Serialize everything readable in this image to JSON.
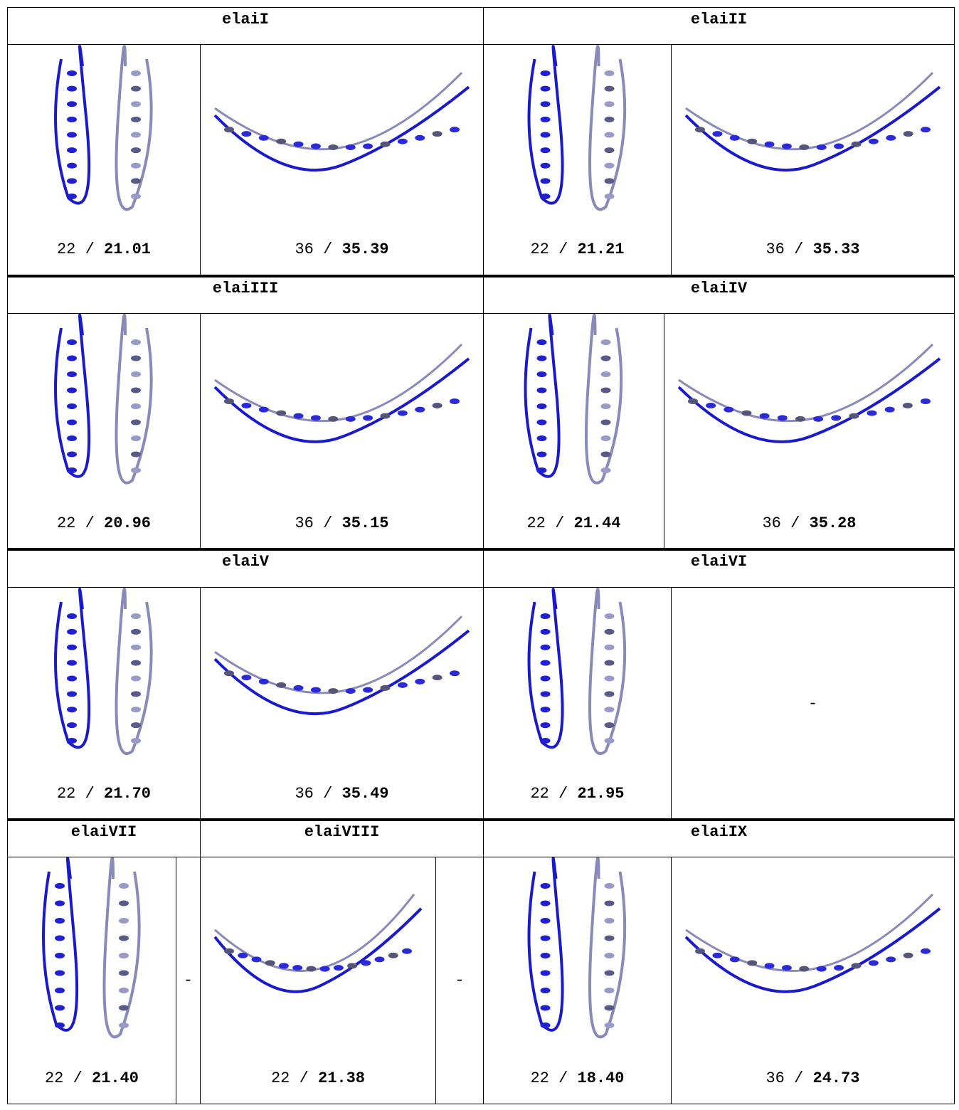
{
  "groups": [
    {
      "headers": [
        {
          "name": "elaiI"
        },
        {
          "name": "elaiII"
        }
      ],
      "cells": [
        {
          "n": "22",
          "sep": "/",
          "v": "21.01"
        },
        {
          "n": "36",
          "sep": "/",
          "v": "35.39"
        },
        {
          "n": "22",
          "sep": "/",
          "v": "21.21"
        },
        {
          "n": "36",
          "sep": "/",
          "v": "35.33"
        }
      ]
    },
    {
      "headers": [
        {
          "name": "elaiIII"
        },
        {
          "name": "elaiIV"
        }
      ],
      "cells": [
        {
          "n": "22",
          "sep": "/",
          "v": "20.96"
        },
        {
          "n": "36",
          "sep": "/",
          "v": "35.15"
        },
        {
          "n": "22",
          "sep": "/",
          "v": "21.44"
        },
        {
          "n": "36",
          "sep": "/",
          "v": "35.28"
        }
      ]
    },
    {
      "headers": [
        {
          "name": "elaiV"
        },
        {
          "name": "elaiVI"
        }
      ],
      "cells": [
        {
          "n": "22",
          "sep": "/",
          "v": "21.70"
        },
        {
          "n": "36",
          "sep": "/",
          "v": "35.49"
        },
        {
          "n": "22",
          "sep": "/",
          "v": "21.95"
        },
        {
          "dash": "-"
        }
      ]
    },
    {
      "headers": [
        {
          "name": "elaiVII"
        },
        {
          "name": "elaiVIII"
        },
        {
          "name": "elaiIX"
        }
      ],
      "cells": [
        {
          "n": "22",
          "sep": "/",
          "v": "21.40"
        },
        {
          "dash": "-"
        },
        {
          "n": "22",
          "sep": "/",
          "v": "21.38"
        },
        {
          "dash": "-"
        },
        {
          "n": "22",
          "sep": "/",
          "v": "18.40"
        },
        {
          "n": "36",
          "sep": "/",
          "v": "24.73"
        }
      ]
    }
  ]
}
